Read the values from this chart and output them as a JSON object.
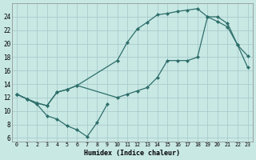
{
  "bg_color": "#c8e8e4",
  "line_color": "#2e6e6a",
  "grid_color": "#a8cccc",
  "xlabel": "Humidex (Indice chaleur)",
  "xlim": [
    -0.5,
    23.5
  ],
  "ylim": [
    5.5,
    26.0
  ],
  "yticks": [
    6,
    8,
    10,
    12,
    14,
    16,
    18,
    20,
    22,
    24
  ],
  "xticks": [
    0,
    1,
    2,
    3,
    4,
    5,
    6,
    7,
    8,
    9,
    10,
    11,
    12,
    13,
    14,
    15,
    16,
    17,
    18,
    19,
    20,
    21,
    22,
    23
  ],
  "line_zigzag_x": [
    0,
    1,
    2,
    3,
    4,
    5,
    6,
    7,
    8,
    9
  ],
  "line_zigzag_y": [
    12.5,
    11.8,
    11.0,
    9.3,
    8.8,
    7.8,
    7.2,
    6.2,
    8.3,
    11.0
  ],
  "line_upper_x": [
    0,
    1,
    2,
    3,
    4,
    5,
    6,
    10,
    11,
    12,
    13,
    14,
    15,
    16,
    17,
    18,
    19,
    20,
    21,
    22,
    23
  ],
  "line_upper_y": [
    12.5,
    11.8,
    11.2,
    10.8,
    12.8,
    13.2,
    13.8,
    17.5,
    20.2,
    22.2,
    23.2,
    24.3,
    24.5,
    24.8,
    25.0,
    25.2,
    24.0,
    23.3,
    22.5,
    19.8,
    18.2
  ],
  "line_diag_x": [
    0,
    1,
    2,
    3,
    4,
    5,
    6,
    10,
    11,
    12,
    13,
    14,
    15,
    16,
    17,
    18,
    19,
    20,
    21,
    22,
    23
  ],
  "line_diag_y": [
    12.5,
    11.8,
    11.2,
    10.8,
    12.8,
    13.2,
    13.8,
    12.0,
    12.5,
    13.0,
    13.5,
    15.0,
    17.5,
    17.5,
    17.5,
    18.0,
    24.0,
    24.0,
    23.0,
    19.8,
    16.5
  ]
}
